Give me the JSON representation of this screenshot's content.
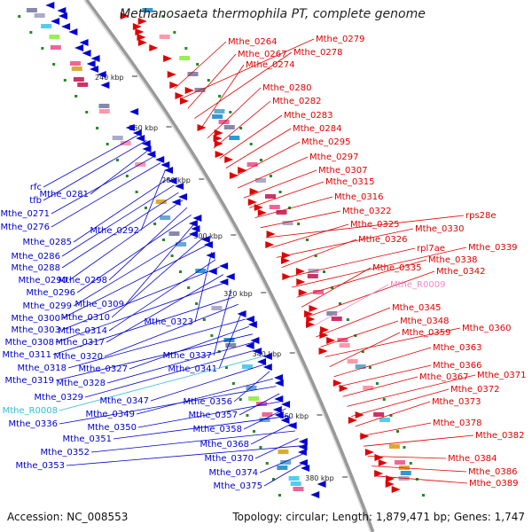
{
  "title": "Methanosaeta thermophila PT, complete genome",
  "footer": {
    "accession": "Accession: NC_008553",
    "summary": "Topology: circular; Length: 1,879,471 bp; Genes: 1,747"
  },
  "colors": {
    "forward": "#e00000",
    "reverse": "#0000d0",
    "rna_reverse": "#33bbdd",
    "rna_forward": "#ee88cc",
    "backbone": "#888888",
    "tick": "#228822"
  },
  "ticks": [
    "240 kbp",
    "260 kbp",
    "280 kbp",
    "300 kbp",
    "320 kbp",
    "340 kbp",
    "360 kbp",
    "380 kbp"
  ],
  "left_labels": [
    "rfc",
    "tfb",
    "Mthe_0281",
    "Mthe_0271",
    "Mthe_0276",
    "Mthe_0292",
    "Mthe_0285",
    "Mthe_0286",
    "Mthe_0288",
    "Mthe_0290",
    "Mthe_0298",
    "Mthe_0296",
    "Mthe_0309",
    "Mthe_0299",
    "Mthe_0310",
    "Mthe_0300",
    "Mthe_0323",
    "Mthe_0314",
    "Mthe_0303",
    "Mthe_0317",
    "Mthe_0308",
    "Mthe_0337",
    "Mthe_0311",
    "Mthe_0320",
    "Mthe_0341",
    "Mthe_0318",
    "Mthe_0327",
    "Mthe_0319",
    "Mthe_0328",
    "Mthe_0329",
    "Mthe_R0008",
    "Mthe_0347",
    "Mthe_0356",
    "Mthe_0349",
    "Mthe_0336",
    "Mthe_0357",
    "Mthe_0350",
    "Mthe_0358",
    "Mthe_0351",
    "Mthe_0368",
    "Mthe_0352",
    "Mthe_0370",
    "Mthe_0353",
    "Mthe_0374",
    "Mthe_0375"
  ],
  "right_labels": [
    "Mthe_0264",
    "Mthe_0279",
    "Mthe_0267",
    "Mthe_0278",
    "Mthe_0274",
    "Mthe_0280",
    "Mthe_0282",
    "Mthe_0283",
    "Mthe_0284",
    "Mthe_0295",
    "Mthe_0297",
    "Mthe_0307",
    "Mthe_0315",
    "Mthe_0316",
    "Mthe_0322",
    "rps28e",
    "Mthe_0325",
    "Mthe_0330",
    "Mthe_0326",
    "rpl7ae",
    "Mthe_0339",
    "Mthe_0338",
    "Mthe_0335",
    "Mthe_0342",
    "Mthe_R0009",
    "Mthe_0345",
    "Mthe_0348",
    "Mthe_0360",
    "Mthe_0359",
    "Mthe_0363",
    "Mthe_0366",
    "Mthe_0367",
    "Mthe_0371",
    "Mthe_0372",
    "Mthe_0373",
    "Mthe_0378",
    "Mthe_0382",
    "Mthe_0384",
    "Mthe_0386",
    "Mthe_0389"
  ]
}
